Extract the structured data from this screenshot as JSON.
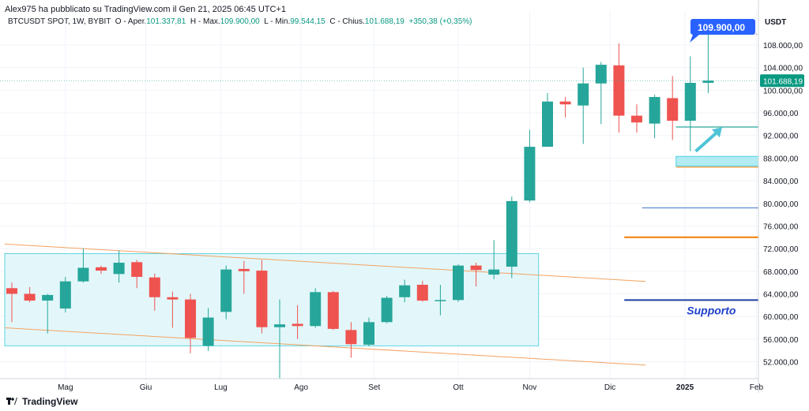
{
  "header": {
    "publisher": "Alex975 ha pubblicato su TradingView.com il Gen 21, 2025 06:45 UTC+1",
    "symbol": "BTCUSDT SPOT, 1W, BYBIT",
    "o_label": "O - Aper.",
    "o_value": "101.337,81",
    "h_label": "H - Max.",
    "h_value": "109.900,00",
    "l_label": "L - Min.",
    "l_value": "99.544,15",
    "c_label": "C - Chius.",
    "c_value": "101.688,19",
    "change": "+350,38 (+0,35%)"
  },
  "footer": {
    "brand": "TradingView",
    "logo_icon": "tradingview-logo-icon"
  },
  "colors": {
    "up": "#26a69a",
    "down": "#ef5350",
    "box": "#e0f7fa",
    "box_border": "#4dd0e1",
    "channel": "#f4a261",
    "support": "#1e3fa0",
    "orange": "#f57c00",
    "blue_line": "#5b8bd9",
    "green_line": "#26a69a",
    "price_badge": "#2962ff"
  },
  "chart_data": {
    "type": "candlestick",
    "ylim": [
      49000,
      114000
    ],
    "y_ticks": [
      "52.000,00",
      "56.000,00",
      "60.000,00",
      "64.000,00",
      "68.000,00",
      "72.000,00",
      "76.000,00",
      "80.000,00",
      "84.000,00",
      "88.000,00",
      "92.000,00",
      "96.000,00",
      "100.000,00",
      "104.000,00",
      "108.000,00"
    ],
    "y_tick_values": [
      52000,
      56000,
      60000,
      64000,
      68000,
      72000,
      76000,
      80000,
      84000,
      88000,
      92000,
      96000,
      100000,
      104000,
      108000
    ],
    "currency_label": "USDT",
    "x_labels": [
      "Mag",
      "Giu",
      "Lug",
      "Ago",
      "Set",
      "Ott",
      "Nov",
      "Dic",
      "2025",
      "Feb"
    ],
    "x_label_weeks": [
      3,
      7.5,
      11.7,
      16.2,
      20.3,
      25,
      29,
      33.5,
      37.7,
      41.7
    ],
    "last_price": "101.688,19",
    "high_badge": "109.900,00",
    "annotation": "Supporto",
    "candles": [
      [
        65000,
        66000,
        59000,
        64000
      ],
      [
        64000,
        65200,
        62500,
        62800
      ],
      [
        62800,
        64000,
        57000,
        63800
      ],
      [
        61400,
        67000,
        60700,
        66200
      ],
      [
        66200,
        72000,
        66000,
        68600
      ],
      [
        68700,
        69000,
        67500,
        68100
      ],
      [
        67500,
        71700,
        66000,
        69500
      ],
      [
        69600,
        70000,
        65000,
        67000
      ],
      [
        66900,
        67600,
        61000,
        63400
      ],
      [
        63400,
        64400,
        58000,
        63000
      ],
      [
        63000,
        64000,
        53500,
        56200
      ],
      [
        54800,
        61500,
        53900,
        59800
      ],
      [
        60800,
        69000,
        59500,
        68300
      ],
      [
        68400,
        69800,
        64000,
        68000
      ],
      [
        68100,
        70000,
        57000,
        58100
      ],
      [
        58100,
        63000,
        49000,
        58600
      ],
      [
        58700,
        62000,
        56000,
        58300
      ],
      [
        58300,
        65000,
        58000,
        64300
      ],
      [
        64300,
        64500,
        57600,
        57800
      ],
      [
        57600,
        59000,
        52700,
        55100
      ],
      [
        55000,
        59800,
        54700,
        59000
      ],
      [
        59000,
        63600,
        58800,
        63300
      ],
      [
        63400,
        66500,
        62500,
        65500
      ],
      [
        65600,
        66300,
        62600,
        62800
      ],
      [
        62800,
        65600,
        60200,
        62900
      ],
      [
        62900,
        69200,
        62600,
        69000
      ],
      [
        69000,
        69500,
        65300,
        68200
      ],
      [
        67400,
        73500,
        66600,
        68300
      ],
      [
        68800,
        81200,
        66800,
        80400
      ],
      [
        80500,
        93000,
        80200,
        90000
      ],
      [
        90000,
        99500,
        90000,
        98000
      ],
      [
        98000,
        98800,
        95200,
        97500
      ],
      [
        97300,
        104000,
        90500,
        101200
      ],
      [
        101200,
        105000,
        94000,
        104500
      ],
      [
        104400,
        108300,
        92500,
        95500
      ],
      [
        95500,
        97500,
        92500,
        94300
      ],
      [
        94100,
        99200,
        91500,
        98800
      ],
      [
        98600,
        102500,
        91200,
        94600
      ],
      [
        94600,
        106000,
        89200,
        101300
      ],
      [
        101300,
        109900,
        99500,
        101700
      ]
    ],
    "levels": [
      {
        "name": "green-level",
        "value": 93500
      },
      {
        "name": "zone-top",
        "value": 88300
      },
      {
        "name": "zone-bottom",
        "value": 86600
      },
      {
        "name": "orange-thin",
        "value": 86400
      },
      {
        "name": "blue-level",
        "value": 79200
      },
      {
        "name": "orange-level",
        "value": 74000
      },
      {
        "name": "support-level",
        "value": 62900
      }
    ],
    "range_box": {
      "x0_week": 0,
      "x1_week": 29.5,
      "y_low": 54800,
      "y_high": 71100
    },
    "channel_upper": {
      "x0_week": 0,
      "y0": 72800,
      "x1_week": 35.5,
      "y1": 66200
    },
    "channel_lower": {
      "x0_week": 0,
      "y0": 58000,
      "x1_week": 35.5,
      "y1": 51400
    }
  }
}
